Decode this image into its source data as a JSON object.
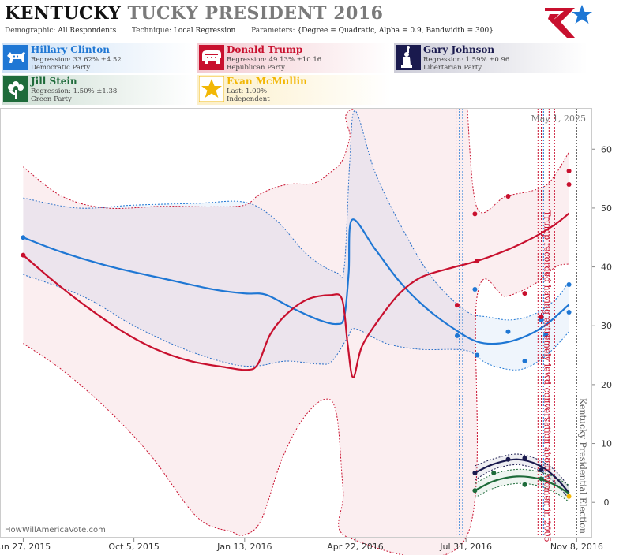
{
  "header": {
    "title_main": "KENTUCKY",
    "title_sub": "TUCKY PRESIDENT 2016",
    "demographic_label": "Demographic:",
    "demographic_value": "All Respondents",
    "technique_label": "Technique:",
    "technique_value": "Local Regression",
    "parameters_label": "Parameters:",
    "parameters_value": "{Degree = Quadratic, Alpha = 0.9, Bandwidth = 300}"
  },
  "logo_icon": "star-flag-logo",
  "candidates": [
    {
      "name": "Hillary Clinton",
      "stat": "Regression: 33.62% ±4.52",
      "party": "Democratic Party",
      "color": "#1f77d4",
      "icon": "donkey-icon"
    },
    {
      "name": "Donald Trump",
      "stat": "Regression: 49.13% ±10.16",
      "party": "Republican Party",
      "color": "#c8102e",
      "icon": "elephant-icon"
    },
    {
      "name": "Gary Johnson",
      "stat": "Regression: 1.59% ±0.96",
      "party": "Libertarian Party",
      "color": "#1a1a4e",
      "icon": "statue-of-liberty-icon"
    },
    {
      "name": "Jill Stein",
      "stat": "Regression: 1.50% ±1.38",
      "party": "Green Party",
      "color": "#1e6b3a",
      "icon": "flower-icon"
    },
    {
      "name": "Evan McMullin",
      "stat": "Last: 1.00%",
      "party": "Independent",
      "color": "#f2b705",
      "icon": "star-icon"
    }
  ],
  "footer": {
    "source": "HowWillAmericaVote.com"
  },
  "chart_data": {
    "type": "line",
    "x_axis": {
      "type": "date",
      "range": [
        "2015-06-06",
        "2016-11-22"
      ],
      "ticks": [
        "2015-06-27",
        "2015-10-05",
        "2016-01-13",
        "2016-04-22",
        "2016-07-31",
        "2016-11-08"
      ],
      "tick_labels": [
        "Jun 27, 2015",
        "Oct 5, 2015",
        "Jan 13, 2016",
        "Apr 22, 2016",
        "Jul 31, 2016",
        "Nov 8, 2016"
      ]
    },
    "y_axis": {
      "range": [
        -6,
        67
      ],
      "ticks": [
        0,
        10,
        20,
        30,
        40,
        50,
        60
      ],
      "side": "right"
    },
    "date_label": "May 1, 2025",
    "events": [
      {
        "date": "2016-10-07",
        "label": "Trump recorded having extremely lewd conversation about women in 2005",
        "color": "#c8102e"
      },
      {
        "date": "2016-11-08",
        "label": "Kentucky Presidential Election",
        "color": "#555555"
      }
    ],
    "event_lines": [
      {
        "date": "2016-07-22",
        "color": "#c8102e"
      },
      {
        "date": "2016-07-25",
        "color": "#1f77d4"
      },
      {
        "date": "2016-07-28",
        "color": "#1f77d4"
      },
      {
        "date": "2016-10-04",
        "color": "#c8102e"
      },
      {
        "date": "2016-10-09",
        "color": "#1f77d4"
      },
      {
        "date": "2016-10-14",
        "color": "#c8102e"
      },
      {
        "date": "2016-10-19",
        "color": "#c8102e"
      }
    ],
    "series": [
      {
        "name": "Hillary Clinton",
        "color": "#1f77d4",
        "band_color": "#1f77d4",
        "trend": [
          {
            "x": "2015-06-27",
            "y": 45.0
          },
          {
            "x": "2015-08-01",
            "y": 42.5
          },
          {
            "x": "2015-09-15",
            "y": 40.0
          },
          {
            "x": "2015-11-01",
            "y": 38.0
          },
          {
            "x": "2015-12-15",
            "y": 36.2
          },
          {
            "x": "2016-01-13",
            "y": 35.5
          },
          {
            "x": "2016-02-01",
            "y": 35.3
          },
          {
            "x": "2016-02-25",
            "y": 33.0
          },
          {
            "x": "2016-03-20",
            "y": 31.0
          },
          {
            "x": "2016-04-05",
            "y": 30.3
          },
          {
            "x": "2016-04-12",
            "y": 31.5
          },
          {
            "x": "2016-04-16",
            "y": 39.0
          },
          {
            "x": "2016-04-19",
            "y": 48.0
          },
          {
            "x": "2016-05-10",
            "y": 43.0
          },
          {
            "x": "2016-06-01",
            "y": 37.5
          },
          {
            "x": "2016-06-25",
            "y": 33.0
          },
          {
            "x": "2016-07-20",
            "y": 29.5
          },
          {
            "x": "2016-08-10",
            "y": 27.3
          },
          {
            "x": "2016-08-30",
            "y": 27.0
          },
          {
            "x": "2016-09-20",
            "y": 28.0
          },
          {
            "x": "2016-10-10",
            "y": 30.0
          },
          {
            "x": "2016-11-01",
            "y": 33.6
          }
        ],
        "upper": [
          {
            "x": "2015-06-27",
            "y": 51.7
          },
          {
            "x": "2015-08-15",
            "y": 50.0
          },
          {
            "x": "2015-10-05",
            "y": 50.5
          },
          {
            "x": "2015-12-01",
            "y": 50.8
          },
          {
            "x": "2016-01-13",
            "y": 51.0
          },
          {
            "x": "2016-02-10",
            "y": 48.0
          },
          {
            "x": "2016-03-10",
            "y": 42.0
          },
          {
            "x": "2016-04-05",
            "y": 39.0
          },
          {
            "x": "2016-04-12",
            "y": 40.0
          },
          {
            "x": "2016-04-17",
            "y": 58.0
          },
          {
            "x": "2016-04-22",
            "y": 66.5
          },
          {
            "x": "2016-05-10",
            "y": 56.0
          },
          {
            "x": "2016-06-05",
            "y": 46.0
          },
          {
            "x": "2016-07-01",
            "y": 38.0
          },
          {
            "x": "2016-07-31",
            "y": 32.5
          },
          {
            "x": "2016-08-20",
            "y": 31.5
          },
          {
            "x": "2016-09-10",
            "y": 31.0
          },
          {
            "x": "2016-10-01",
            "y": 32.0
          },
          {
            "x": "2016-10-20",
            "y": 34.5
          },
          {
            "x": "2016-11-01",
            "y": 37.5
          }
        ],
        "lower": [
          {
            "x": "2015-06-27",
            "y": 38.7
          },
          {
            "x": "2015-08-20",
            "y": 35.0
          },
          {
            "x": "2015-10-05",
            "y": 30.0
          },
          {
            "x": "2015-11-20",
            "y": 26.0
          },
          {
            "x": "2016-01-01",
            "y": 23.5
          },
          {
            "x": "2016-01-25",
            "y": 23.2
          },
          {
            "x": "2016-02-20",
            "y": 24.0
          },
          {
            "x": "2016-03-20",
            "y": 23.5
          },
          {
            "x": "2016-04-01",
            "y": 24.0
          },
          {
            "x": "2016-04-15",
            "y": 28.0
          },
          {
            "x": "2016-04-22",
            "y": 29.5
          },
          {
            "x": "2016-05-20",
            "y": 27.0
          },
          {
            "x": "2016-06-20",
            "y": 26.0
          },
          {
            "x": "2016-07-31",
            "y": 25.8
          },
          {
            "x": "2016-08-20",
            "y": 23.5
          },
          {
            "x": "2016-09-15",
            "y": 22.5
          },
          {
            "x": "2016-10-05",
            "y": 24.0
          },
          {
            "x": "2016-10-20",
            "y": 26.5
          },
          {
            "x": "2016-11-01",
            "y": 29.0
          }
        ],
        "points": [
          {
            "x": "2015-06-27",
            "y": 45.0
          },
          {
            "x": "2016-07-23",
            "y": 28.3
          },
          {
            "x": "2016-08-08",
            "y": 36.2
          },
          {
            "x": "2016-08-10",
            "y": 25.0
          },
          {
            "x": "2016-09-07",
            "y": 29.0
          },
          {
            "x": "2016-09-22",
            "y": 24.0
          },
          {
            "x": "2016-10-07",
            "y": 31.0
          },
          {
            "x": "2016-10-11",
            "y": 28.5
          },
          {
            "x": "2016-11-01",
            "y": 37.0
          },
          {
            "x": "2016-11-01",
            "y": 32.3
          }
        ]
      },
      {
        "name": "Donald Trump",
        "color": "#c8102e",
        "band_color": "#c8102e",
        "trend": [
          {
            "x": "2015-06-27",
            "y": 42.0
          },
          {
            "x": "2015-07-25",
            "y": 37.5
          },
          {
            "x": "2015-08-25",
            "y": 33.0
          },
          {
            "x": "2015-09-25",
            "y": 29.0
          },
          {
            "x": "2015-10-25",
            "y": 26.0
          },
          {
            "x": "2015-11-25",
            "y": 24.0
          },
          {
            "x": "2015-12-25",
            "y": 23.0
          },
          {
            "x": "2016-01-15",
            "y": 22.5
          },
          {
            "x": "2016-01-25",
            "y": 23.5
          },
          {
            "x": "2016-02-05",
            "y": 28.5
          },
          {
            "x": "2016-02-20",
            "y": 32.0
          },
          {
            "x": "2016-03-10",
            "y": 34.5
          },
          {
            "x": "2016-03-30",
            "y": 35.2
          },
          {
            "x": "2016-04-10",
            "y": 34.5
          },
          {
            "x": "2016-04-15",
            "y": 27.0
          },
          {
            "x": "2016-04-20",
            "y": 21.2
          },
          {
            "x": "2016-04-28",
            "y": 26.5
          },
          {
            "x": "2016-05-15",
            "y": 31.5
          },
          {
            "x": "2016-06-01",
            "y": 35.5
          },
          {
            "x": "2016-06-20",
            "y": 38.2
          },
          {
            "x": "2016-07-15",
            "y": 39.7
          },
          {
            "x": "2016-08-10",
            "y": 41.0
          },
          {
            "x": "2016-09-05",
            "y": 42.8
          },
          {
            "x": "2016-09-30",
            "y": 45.0
          },
          {
            "x": "2016-10-20",
            "y": 47.3
          },
          {
            "x": "2016-11-01",
            "y": 49.1
          }
        ],
        "upper": [
          {
            "x": "2015-06-27",
            "y": 57.0
          },
          {
            "x": "2015-08-01",
            "y": 52.0
          },
          {
            "x": "2015-09-10",
            "y": 50.0
          },
          {
            "x": "2015-11-01",
            "y": 50.3
          },
          {
            "x": "2015-12-15",
            "y": 50.2
          },
          {
            "x": "2016-01-13",
            "y": 50.5
          },
          {
            "x": "2016-01-28",
            "y": 52.5
          },
          {
            "x": "2016-02-20",
            "y": 54.0
          },
          {
            "x": "2016-03-15",
            "y": 54.2
          },
          {
            "x": "2016-03-30",
            "y": 56.0
          },
          {
            "x": "2016-04-10",
            "y": 58.0
          },
          {
            "x": "2016-04-17",
            "y": 62.0
          },
          {
            "x": "2016-04-22",
            "y": 67.0
          },
          {
            "x": "2016-07-31",
            "y": 67.0
          },
          {
            "x": "2016-08-01",
            "y": 67.0
          },
          {
            "x": "2016-08-10",
            "y": 50.0
          },
          {
            "x": "2016-09-05",
            "y": 52.0
          },
          {
            "x": "2016-09-30",
            "y": 53.0
          },
          {
            "x": "2016-10-15",
            "y": 54.5
          },
          {
            "x": "2016-11-01",
            "y": 59.5
          }
        ],
        "lower": [
          {
            "x": "2015-06-27",
            "y": 27.0
          },
          {
            "x": "2015-08-01",
            "y": 22.5
          },
          {
            "x": "2015-09-10",
            "y": 16.0
          },
          {
            "x": "2015-10-20",
            "y": 8.0
          },
          {
            "x": "2015-12-01",
            "y": -2.5
          },
          {
            "x": "2016-01-01",
            "y": -5.0
          },
          {
            "x": "2016-01-13",
            "y": -5.5
          },
          {
            "x": "2016-01-28",
            "y": -3.0
          },
          {
            "x": "2016-02-15",
            "y": 7.0
          },
          {
            "x": "2016-03-05",
            "y": 14.0
          },
          {
            "x": "2016-03-25",
            "y": 17.5
          },
          {
            "x": "2016-04-05",
            "y": 15.0
          },
          {
            "x": "2016-04-11",
            "y": 2.0
          },
          {
            "x": "2016-04-16",
            "y": -6.0
          },
          {
            "x": "2016-07-31",
            "y": -6.0
          },
          {
            "x": "2016-08-10",
            "y": 35.0
          },
          {
            "x": "2016-09-05",
            "y": 35.0
          },
          {
            "x": "2016-09-30",
            "y": 37.0
          },
          {
            "x": "2016-10-20",
            "y": 40.0
          },
          {
            "x": "2016-11-01",
            "y": 40.5
          }
        ],
        "points": [
          {
            "x": "2015-06-27",
            "y": 42.0
          },
          {
            "x": "2016-07-23",
            "y": 33.5
          },
          {
            "x": "2016-08-08",
            "y": 49.0
          },
          {
            "x": "2016-08-10",
            "y": 41.0
          },
          {
            "x": "2016-09-07",
            "y": 52.0
          },
          {
            "x": "2016-09-22",
            "y": 35.5
          },
          {
            "x": "2016-10-07",
            "y": 31.5
          },
          {
            "x": "2016-11-01",
            "y": 56.3
          },
          {
            "x": "2016-11-01",
            "y": 54.0
          }
        ]
      },
      {
        "name": "Gary Johnson",
        "color": "#1a1a4e",
        "band_color": "#1a1a4e",
        "trend": [
          {
            "x": "2016-08-08",
            "y": 5.0
          },
          {
            "x": "2016-08-25",
            "y": 6.5
          },
          {
            "x": "2016-09-15",
            "y": 7.3
          },
          {
            "x": "2016-10-05",
            "y": 6.3
          },
          {
            "x": "2016-10-20",
            "y": 4.2
          },
          {
            "x": "2016-11-01",
            "y": 1.6
          }
        ],
        "upper": [
          {
            "x": "2016-08-08",
            "y": 6.2
          },
          {
            "x": "2016-08-25",
            "y": 7.4
          },
          {
            "x": "2016-09-15",
            "y": 8.2
          },
          {
            "x": "2016-10-05",
            "y": 7.2
          },
          {
            "x": "2016-10-20",
            "y": 5.3
          },
          {
            "x": "2016-11-01",
            "y": 2.6
          }
        ],
        "lower": [
          {
            "x": "2016-08-08",
            "y": 3.8
          },
          {
            "x": "2016-08-25",
            "y": 5.6
          },
          {
            "x": "2016-09-15",
            "y": 6.4
          },
          {
            "x": "2016-10-05",
            "y": 5.4
          },
          {
            "x": "2016-10-20",
            "y": 3.2
          },
          {
            "x": "2016-11-01",
            "y": 0.6
          }
        ],
        "points": [
          {
            "x": "2016-08-08",
            "y": 5.0
          },
          {
            "x": "2016-09-07",
            "y": 7.3
          },
          {
            "x": "2016-09-22",
            "y": 7.5
          },
          {
            "x": "2016-10-07",
            "y": 5.5
          }
        ]
      },
      {
        "name": "Jill Stein",
        "color": "#1e6b3a",
        "band_color": "#1e6b3a",
        "trend": [
          {
            "x": "2016-08-08",
            "y": 2.0
          },
          {
            "x": "2016-08-25",
            "y": 3.6
          },
          {
            "x": "2016-09-15",
            "y": 4.4
          },
          {
            "x": "2016-10-05",
            "y": 4.0
          },
          {
            "x": "2016-10-20",
            "y": 2.9
          },
          {
            "x": "2016-11-01",
            "y": 1.5
          }
        ],
        "upper": [
          {
            "x": "2016-08-08",
            "y": 3.2
          },
          {
            "x": "2016-08-25",
            "y": 4.8
          },
          {
            "x": "2016-09-15",
            "y": 5.6
          },
          {
            "x": "2016-10-05",
            "y": 5.2
          },
          {
            "x": "2016-10-20",
            "y": 4.2
          },
          {
            "x": "2016-11-01",
            "y": 2.9
          }
        ],
        "lower": [
          {
            "x": "2016-08-08",
            "y": 0.8
          },
          {
            "x": "2016-08-25",
            "y": 2.4
          },
          {
            "x": "2016-09-15",
            "y": 3.2
          },
          {
            "x": "2016-10-05",
            "y": 2.8
          },
          {
            "x": "2016-10-20",
            "y": 1.6
          },
          {
            "x": "2016-11-01",
            "y": 0.1
          }
        ],
        "points": [
          {
            "x": "2016-08-08",
            "y": 2.0
          },
          {
            "x": "2016-08-25",
            "y": 5.0
          },
          {
            "x": "2016-09-22",
            "y": 3.0
          },
          {
            "x": "2016-10-07",
            "y": 4.0
          }
        ]
      },
      {
        "name": "Evan McMullin",
        "color": "#f2b705",
        "points": [
          {
            "x": "2016-11-01",
            "y": 1.0
          }
        ]
      }
    ]
  }
}
